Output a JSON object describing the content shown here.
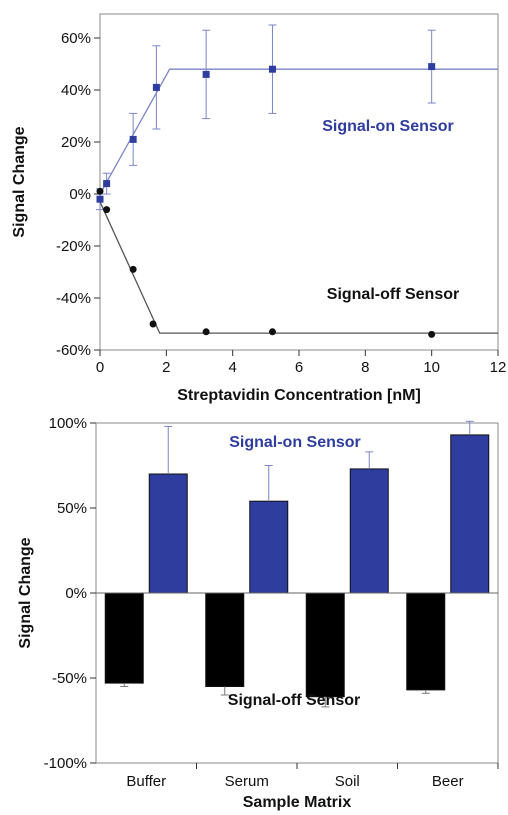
{
  "chart_data": [
    {
      "type": "scatter",
      "xlabel": "Streptavidin Concentration [nM]",
      "ylabel": "Signal Change",
      "xlim": [
        0,
        12
      ],
      "ylim": [
        -60,
        70
      ],
      "x_ticks": [
        "0",
        "2",
        "4",
        "6",
        "8",
        "10",
        "12"
      ],
      "y_ticks": [
        "-60%",
        "-40%",
        "-20%",
        "0%",
        "20%",
        "40%",
        "60%"
      ],
      "grid": false,
      "series": [
        {
          "name": "Signal-on Sensor",
          "color": "#2e3d9e",
          "marker": "square",
          "points": [
            {
              "x": 0,
              "y": -2,
              "err": 4
            },
            {
              "x": 0.2,
              "y": 4,
              "err": 4
            },
            {
              "x": 1.0,
              "y": 21,
              "err": 10
            },
            {
              "x": 1.7,
              "y": 41,
              "err": 16
            },
            {
              "x": 3.2,
              "y": 46,
              "err": 17
            },
            {
              "x": 5.2,
              "y": 48,
              "err": 17
            },
            {
              "x": 10,
              "y": 49,
              "err": 14
            }
          ],
          "fit": [
            [
              0,
              0
            ],
            [
              2.1,
              48
            ],
            [
              12,
              48
            ]
          ]
        },
        {
          "name": "Signal-off Sensor",
          "color": "#111111",
          "marker": "circle",
          "points": [
            {
              "x": 0,
              "y": 1
            },
            {
              "x": 0.2,
              "y": -6
            },
            {
              "x": 1.0,
              "y": -29
            },
            {
              "x": 1.6,
              "y": -50
            },
            {
              "x": 3.2,
              "y": -53
            },
            {
              "x": 5.2,
              "y": -53
            },
            {
              "x": 10,
              "y": -54
            }
          ],
          "fit": [
            [
              0,
              -3
            ],
            [
              1.8,
              -53.5
            ],
            [
              12,
              -53.5
            ]
          ]
        }
      ],
      "annotations": [
        "Signal-on Sensor",
        "Signal-off Sensor"
      ]
    },
    {
      "type": "bar",
      "xlabel": "Sample Matrix",
      "ylabel": "Signal Change",
      "ylim": [
        -100,
        100
      ],
      "y_ticks": [
        "-100%",
        "-50%",
        "0%",
        "50%",
        "100%"
      ],
      "categories": [
        "Buffer",
        "Serum",
        "Soil",
        "Beer"
      ],
      "series": [
        {
          "name": "Signal-off Sensor",
          "color": "#000000",
          "values": [
            -53,
            -55,
            -61,
            -57
          ],
          "errors": [
            2,
            5,
            6,
            2
          ]
        },
        {
          "name": "Signal-on Sensor",
          "color": "#2e3d9e",
          "values": [
            70,
            54,
            73,
            93
          ],
          "errors": [
            28,
            21,
            10,
            8
          ]
        }
      ],
      "annotations": [
        "Signal-on Sensor",
        "Signal-off Sensor"
      ]
    }
  ]
}
